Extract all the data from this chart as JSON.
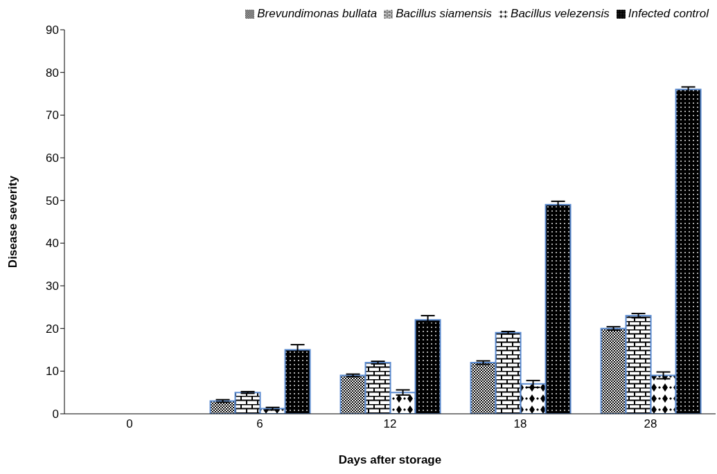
{
  "chart_data": {
    "type": "bar",
    "xlabel": "Days after storage",
    "ylabel": "Disease severity",
    "categories": [
      "0",
      "6",
      "12",
      "18",
      "28"
    ],
    "series": [
      {
        "name": "Brevundimonas bullata",
        "color": "#5b8bd0",
        "values": [
          0,
          3,
          9,
          12,
          20
        ],
        "errors": [
          null,
          0.3,
          0.3,
          0.4,
          0.4
        ]
      },
      {
        "name": "Bacillus siamensis",
        "color": "#5b8bd0",
        "values": [
          0,
          5,
          12,
          19,
          23
        ],
        "errors": [
          null,
          0.2,
          0.3,
          0.3,
          0.5
        ]
      },
      {
        "name": "Bacillus velezensis",
        "color": "#5b8bd0",
        "values": [
          0,
          1.2,
          5,
          7,
          9
        ],
        "errors": [
          null,
          0.3,
          0.6,
          0.8,
          0.8
        ]
      },
      {
        "name": "Infected control",
        "color": "#5b8bd0",
        "values": [
          0,
          15,
          22,
          49,
          76
        ],
        "errors": [
          null,
          1.2,
          1,
          0.8,
          0.6
        ]
      }
    ],
    "ylim": [
      0,
      90
    ],
    "yticks": [
      0,
      10,
      20,
      30,
      40,
      50,
      60,
      70,
      80,
      90
    ],
    "grid": false,
    "legend": "top right"
  }
}
